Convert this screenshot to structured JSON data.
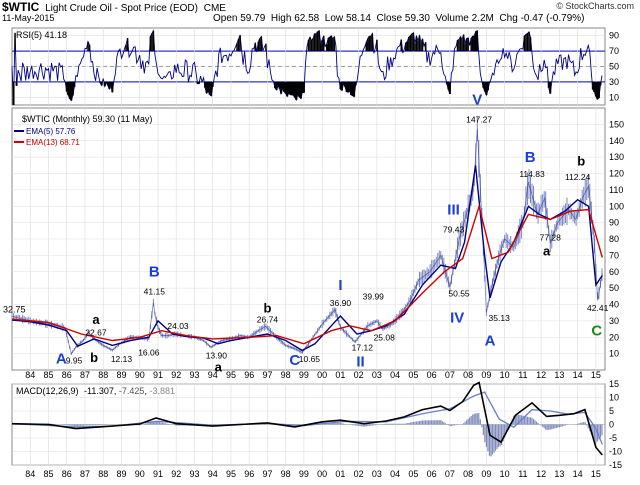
{
  "header": {
    "symbol": "$WTIC",
    "name": "Light Crude Oil - Spot Price (EOD)",
    "exchange": "CME",
    "date": "11-May-2015",
    "open_label": "Open",
    "open": "59.79",
    "high_label": "High",
    "high": "62.58",
    "low_label": "Low",
    "low": "58.14",
    "close_label": "Close",
    "close": "59.30",
    "volume_label": "Volume",
    "volume": "2.2M",
    "chg_label": "Chg",
    "chg": "-0.47 (-0.79%)",
    "credit": "© StockCharts.com"
  },
  "colors": {
    "price": "#000080",
    "ema5": "#000080",
    "ema13": "#cc0000",
    "wave_blue": "#1a3fd6",
    "wave_green": "#1a8a1a",
    "grid": "#dddddd",
    "rsi_band": "#3333cc",
    "macd_hist": "#6a78b0"
  },
  "chart_data": [
    {
      "type": "line",
      "panel": "rsi",
      "legend": "RSI(5) 41.18",
      "ylim": [
        0,
        100
      ],
      "yticks": [
        10,
        30,
        50,
        70,
        90
      ],
      "overbought": 70,
      "oversold": 30
    },
    {
      "type": "line",
      "panel": "price",
      "legend": {
        "main": "$WTIC (Monthly) 59.30 (11 May)",
        "ema5": "EMA(5) 57.76",
        "ema13": "EMA(13) 68.71"
      },
      "ylim": [
        0,
        160
      ],
      "yticks": [
        10,
        20,
        30,
        40,
        50,
        60,
        70,
        80,
        90,
        100,
        110,
        120,
        130,
        140,
        150
      ],
      "x_labels": [
        "84",
        "85",
        "86",
        "87",
        "88",
        "89",
        "90",
        "91",
        "92",
        "93",
        "94",
        "95",
        "96",
        "97",
        "98",
        "99",
        "00",
        "01",
        "02",
        "03",
        "04",
        "05",
        "06",
        "07",
        "08",
        "09",
        "10",
        "11",
        "12",
        "13",
        "14",
        "15"
      ],
      "xlim": [
        1983.0,
        2015.5
      ],
      "series": [
        {
          "x": [
            1983.0,
            1984.0,
            1985.0,
            1985.9,
            1986.25,
            1986.5,
            1986.9,
            1987.2,
            1987.5,
            1988.0,
            1988.5,
            1988.9,
            1989.5,
            1990.0,
            1990.5,
            1990.75,
            1990.85,
            1991.0,
            1991.2,
            1991.6,
            1991.9,
            1992.5,
            1993.0,
            1993.5,
            1993.9,
            1994.5,
            1995.0,
            1995.5,
            1996.0,
            1996.5,
            1996.9,
            1997.5,
            1998.0,
            1998.5,
            1998.9,
            1999.5,
            2000.0,
            2000.7,
            2001.0,
            2001.8,
            2002.5,
            2003.0,
            2003.3,
            2003.8,
            2004.3,
            2004.8,
            2005.3,
            2005.9,
            2006.5,
            2007.0,
            2007.5,
            2007.9,
            2008.3,
            2008.5,
            2008.9,
            2009.0,
            2009.3,
            2009.7,
            2010.0,
            2010.5,
            2011.0,
            2011.3,
            2011.8,
            2012.2,
            2012.5,
            2012.9,
            2013.5,
            2013.9,
            2014.3,
            2014.6,
            2014.9,
            2015.1,
            2015.35
          ],
          "values": [
            32.75,
            30,
            28,
            26,
            9.95,
            14,
            18,
            22.67,
            19,
            15,
            12.13,
            16,
            20,
            20,
            19,
            41.15,
            33,
            26,
            21,
            21,
            22,
            21,
            20,
            18,
            13.9,
            18,
            19,
            21,
            20,
            24,
            26.74,
            20,
            15,
            13,
            10.65,
            20,
            28,
            36.9,
            26,
            17.12,
            27,
            30,
            25.08,
            28,
            34,
            42,
            55,
            60,
            70,
            50.55,
            79.43,
            95,
            110,
            147.27,
            60,
            35.13,
            52,
            70,
            80,
            75,
            90,
            114.83,
            95,
            105,
            77.28,
            90,
            98,
            92,
            106,
            112.24,
            80,
            42.41,
            59.3
          ]
        },
        {
          "name": "EMA(5) 57.76",
          "x": [
            1983.0,
            1984.0,
            1985.0,
            1986.0,
            1986.6,
            1987.5,
            1988.5,
            1989.5,
            1990.5,
            1991.0,
            1991.8,
            1992.5,
            1993.5,
            1994.3,
            1995.0,
            1996.0,
            1997.0,
            1998.0,
            1998.9,
            1999.6,
            2000.5,
            2001.0,
            2001.9,
            2002.7,
            2003.5,
            2004.5,
            2005.5,
            2006.5,
            2007.3,
            2007.8,
            2008.4,
            2008.9,
            2009.2,
            2009.8,
            2010.5,
            2011.3,
            2011.9,
            2012.5,
            2013.3,
            2014.0,
            2014.6,
            2015.0,
            2015.35
          ],
          "values": [
            30.5,
            29.5,
            27.5,
            24,
            14.5,
            19,
            15,
            18,
            20,
            30,
            22,
            20.5,
            19.5,
            16,
            18,
            20,
            22,
            18,
            12,
            16,
            27,
            33,
            22,
            24,
            27,
            34,
            52,
            64,
            62,
            78,
            125,
            70,
            44,
            66,
            78,
            100,
            95,
            92,
            97,
            104,
            100,
            52,
            57.76
          ]
        },
        {
          "name": "EMA(13) 68.71",
          "x": [
            1983.0,
            1985.0,
            1986.8,
            1988.5,
            1990.0,
            1991.2,
            1992.5,
            1994.0,
            1996.0,
            1997.5,
            1999.0,
            2000.5,
            2001.5,
            2002.7,
            2004.0,
            2005.5,
            2006.7,
            2007.7,
            2008.6,
            2009.3,
            2010.2,
            2011.3,
            2012.5,
            2013.6,
            2014.6,
            2015.35
          ],
          "values": [
            31,
            29,
            22,
            18,
            20,
            24,
            21,
            19,
            20,
            21,
            16,
            24,
            27,
            24,
            30,
            47,
            60,
            68,
            100,
            68,
            72,
            95,
            92,
            97,
            98,
            68.71
          ]
        }
      ],
      "annotations": [
        {
          "text": "A",
          "x": 1985.7,
          "y": 4,
          "color": "wave_blue"
        },
        {
          "text": "9.95",
          "x": 1986.4,
          "y": 4,
          "color": "black"
        },
        {
          "text": "a",
          "x": 1987.6,
          "y": 28,
          "color": "black"
        },
        {
          "text": "22.67",
          "x": 1987.6,
          "y": 21,
          "color": "black"
        },
        {
          "text": "b",
          "x": 1987.5,
          "y": 5,
          "color": "black"
        },
        {
          "text": "12.13",
          "x": 1989.0,
          "y": 5,
          "color": "black"
        },
        {
          "text": "B",
          "x": 1990.8,
          "y": 57,
          "color": "wave_blue"
        },
        {
          "text": "41.15",
          "x": 1990.8,
          "y": 46,
          "color": "black"
        },
        {
          "text": "16.06",
          "x": 1990.5,
          "y": 9,
          "color": "black"
        },
        {
          "text": "24.03",
          "x": 1992.1,
          "y": 25,
          "color": "black"
        },
        {
          "text": "13.90",
          "x": 1994.2,
          "y": 7,
          "color": "black"
        },
        {
          "text": "a",
          "x": 1994.3,
          "y": -1,
          "color": "black"
        },
        {
          "text": "b",
          "x": 1997.0,
          "y": 35,
          "color": "black"
        },
        {
          "text": "26.74",
          "x": 1997.0,
          "y": 29,
          "color": "black"
        },
        {
          "text": "C",
          "x": 1998.5,
          "y": 3,
          "color": "wave_blue"
        },
        {
          "text": "10.65",
          "x": 1999.3,
          "y": 5,
          "color": "black"
        },
        {
          "text": "I",
          "x": 2001.0,
          "y": 49,
          "color": "wave_blue"
        },
        {
          "text": "36.90",
          "x": 2001.0,
          "y": 39,
          "color": "black"
        },
        {
          "text": "39.99",
          "x": 2002.8,
          "y": 43,
          "color": "black"
        },
        {
          "text": "17.12",
          "x": 2002.2,
          "y": 12,
          "color": "black"
        },
        {
          "text": "II",
          "x": 2002.1,
          "y": 2,
          "color": "wave_blue"
        },
        {
          "text": "25.08",
          "x": 2003.4,
          "y": 18,
          "color": "black"
        },
        {
          "text": "III",
          "x": 2007.2,
          "y": 95,
          "color": "wave_blue"
        },
        {
          "text": "79.43",
          "x": 2007.2,
          "y": 84,
          "color": "black"
        },
        {
          "text": "50.55",
          "x": 2007.5,
          "y": 45,
          "color": "black"
        },
        {
          "text": "IV",
          "x": 2007.4,
          "y": 29,
          "color": "wave_blue"
        },
        {
          "text": "V",
          "x": 2008.5,
          "y": 162,
          "color": "wave_blue"
        },
        {
          "text": "147.27",
          "x": 2008.6,
          "y": 151,
          "color": "black"
        },
        {
          "text": "35.13",
          "x": 2009.7,
          "y": 30,
          "color": "black"
        },
        {
          "text": "A",
          "x": 2009.2,
          "y": 15,
          "color": "wave_blue"
        },
        {
          "text": "B",
          "x": 2011.4,
          "y": 127,
          "color": "wave_blue"
        },
        {
          "text": "114.83",
          "x": 2011.5,
          "y": 118,
          "color": "black"
        },
        {
          "text": "77.28",
          "x": 2012.5,
          "y": 79,
          "color": "black"
        },
        {
          "text": "a",
          "x": 2012.3,
          "y": 70,
          "color": "black"
        },
        {
          "text": "b",
          "x": 2014.2,
          "y": 125,
          "color": "black"
        },
        {
          "text": "112.24",
          "x": 2014.0,
          "y": 116,
          "color": "black"
        },
        {
          "text": "42.41",
          "x": 2015.1,
          "y": 36,
          "color": "black"
        },
        {
          "text": "C",
          "x": 2015.05,
          "y": 21,
          "color": "wave_green"
        }
      ]
    },
    {
      "type": "line",
      "panel": "macd",
      "legend": {
        "main": "MACD(12,26,9)",
        "macd_value": "-11.307",
        "signal_value": "-7.425",
        "hist_value": "-3.881"
      },
      "ylim": [
        -15,
        15
      ],
      "yticks": [
        15,
        10,
        5,
        0,
        -5,
        -10,
        -15
      ],
      "series": [
        {
          "name": "MACD",
          "x": [
            1983.0,
            1985.0,
            1986.5,
            1988.0,
            1990.0,
            1990.9,
            1992.0,
            1994.0,
            1996.0,
            1997.0,
            1998.5,
            2000.0,
            2001.0,
            2002.3,
            2003.5,
            2004.5,
            2005.5,
            2006.5,
            2007.0,
            2007.7,
            2008.3,
            2008.6,
            2009.2,
            2009.8,
            2010.6,
            2011.5,
            2012.3,
            2013.0,
            2013.8,
            2014.4,
            2015.0,
            2015.35
          ],
          "values": [
            0.3,
            0.0,
            -1.5,
            -0.8,
            0.2,
            2.4,
            0.3,
            -0.6,
            0.2,
            0.6,
            -0.9,
            1.0,
            1.6,
            0.3,
            1.3,
            2.8,
            5.5,
            6.8,
            5.2,
            8.5,
            14.5,
            15.5,
            -4.0,
            -6.5,
            3.5,
            8.0,
            3.0,
            3.4,
            4.0,
            5.5,
            -8.5,
            -11.3
          ]
        },
        {
          "name": "Signal",
          "x": [
            1983.0,
            1986.5,
            1988.5,
            1991.0,
            1994.0,
            1997.0,
            1999.0,
            2001.3,
            2003.5,
            2005.5,
            2007.0,
            2008.3,
            2008.9,
            2009.7,
            2010.5,
            2011.5,
            2012.5,
            2013.5,
            2014.4,
            2015.0,
            2015.35
          ],
          "values": [
            0.3,
            -0.9,
            -0.6,
            1.2,
            -0.3,
            0.4,
            -0.4,
            1.2,
            1.0,
            4.0,
            5.8,
            10.5,
            12.0,
            2.0,
            -1.0,
            5.5,
            5.0,
            3.8,
            4.5,
            -1.5,
            -7.4
          ]
        }
      ]
    }
  ]
}
